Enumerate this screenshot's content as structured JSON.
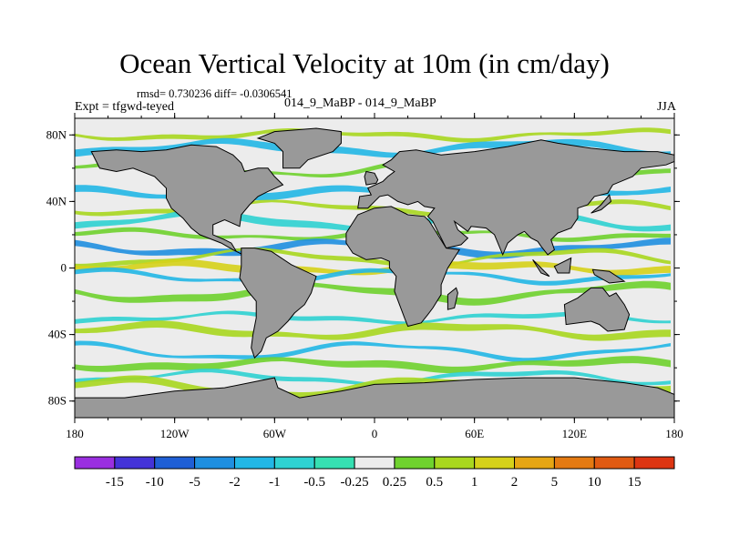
{
  "chart_data": {
    "type": "heatmap",
    "title": "Ocean Vertical Velocity at 10m (in cm/day)",
    "stats_line": "rmsd= 0.730236  diff= -0.0306541",
    "left_label": "Expt = tfgwd-teyed",
    "center_label": "014_9_MaBP - 014_9_MaBP",
    "right_label": "JJA",
    "xlim": [
      -180,
      180
    ],
    "ylim": [
      -90,
      90
    ],
    "x_ticks": [
      {
        "value": -180,
        "label": "180"
      },
      {
        "value": -120,
        "label": "120W"
      },
      {
        "value": -60,
        "label": "60W"
      },
      {
        "value": 0,
        "label": "0"
      },
      {
        "value": 60,
        "label": "60E"
      },
      {
        "value": 120,
        "label": "120E"
      },
      {
        "value": 180,
        "label": "180"
      }
    ],
    "y_ticks": [
      {
        "value": 80,
        "label": "80N"
      },
      {
        "value": 40,
        "label": "40N"
      },
      {
        "value": 0,
        "label": "0"
      },
      {
        "value": -40,
        "label": "40S"
      },
      {
        "value": -80,
        "label": "80S"
      }
    ],
    "colorbar": {
      "levels": [
        "-15",
        "-10",
        "-5",
        "-2",
        "-1",
        "-0.5",
        "-0.25",
        "0.25",
        "0.5",
        "1",
        "2",
        "5",
        "10",
        "15"
      ],
      "colors": [
        "#9a2fe0",
        "#4433d8",
        "#1f5fd6",
        "#1f8fe0",
        "#22b7e6",
        "#2fd2d2",
        "#36e0b2",
        "#ececec",
        "#6fd22e",
        "#a9d71f",
        "#d6d11a",
        "#e6a614",
        "#e47a12",
        "#e05a12",
        "#dd3512"
      ]
    },
    "land_color": "#999999",
    "ocean_background": "#ececec",
    "bands": [
      {
        "lat": 80,
        "value": 1
      },
      {
        "lat": 72,
        "value": -1
      },
      {
        "lat": 60,
        "value": 0.5
      },
      {
        "lat": 45,
        "value": -1
      },
      {
        "lat": 36,
        "value": 1
      },
      {
        "lat": 28,
        "value": -0.5
      },
      {
        "lat": 20,
        "value": 0.5
      },
      {
        "lat": 12,
        "value": -2
      },
      {
        "lat": 6,
        "value": 1
      },
      {
        "lat": 0,
        "value": 2
      },
      {
        "lat": -5,
        "value": -1
      },
      {
        "lat": -15,
        "value": 0.5
      },
      {
        "lat": -30,
        "value": -0.5
      },
      {
        "lat": -38,
        "value": 1
      },
      {
        "lat": -50,
        "value": -1
      },
      {
        "lat": -58,
        "value": 0.5
      },
      {
        "lat": -66,
        "value": -0.5
      },
      {
        "lat": -72,
        "value": 1
      }
    ],
    "land": [
      [
        [
          -170,
          70
        ],
        [
          -155,
          71
        ],
        [
          -140,
          70
        ],
        [
          -125,
          71
        ],
        [
          -110,
          74
        ],
        [
          -95,
          73
        ],
        [
          -85,
          68
        ],
        [
          -80,
          63
        ],
        [
          -78,
          58
        ],
        [
          -70,
          60
        ],
        [
          -64,
          60
        ],
        [
          -60,
          55
        ],
        [
          -55,
          50
        ],
        [
          -64,
          46
        ],
        [
          -70,
          43
        ],
        [
          -75,
          38
        ],
        [
          -80,
          32
        ],
        [
          -81,
          25
        ],
        [
          -90,
          29
        ],
        [
          -97,
          26
        ],
        [
          -97,
          20
        ],
        [
          -90,
          17
        ],
        [
          -86,
          15
        ],
        [
          -83,
          10
        ],
        [
          -79,
          8
        ],
        [
          -85,
          11
        ],
        [
          -92,
          15
        ],
        [
          -105,
          20
        ],
        [
          -110,
          24
        ],
        [
          -115,
          30
        ],
        [
          -122,
          36
        ],
        [
          -125,
          42
        ],
        [
          -125,
          48
        ],
        [
          -132,
          55
        ],
        [
          -145,
          60
        ],
        [
          -155,
          58
        ],
        [
          -165,
          60
        ],
        [
          -168,
          66
        ]
      ],
      [
        [
          -80,
          12
        ],
        [
          -72,
          12
        ],
        [
          -62,
          10
        ],
        [
          -50,
          2
        ],
        [
          -35,
          -5
        ],
        [
          -38,
          -15
        ],
        [
          -42,
          -22
        ],
        [
          -48,
          -27
        ],
        [
          -52,
          -32
        ],
        [
          -58,
          -38
        ],
        [
          -65,
          -42
        ],
        [
          -68,
          -50
        ],
        [
          -72,
          -54
        ],
        [
          -74,
          -48
        ],
        [
          -73,
          -40
        ],
        [
          -71,
          -30
        ],
        [
          -71,
          -20
        ],
        [
          -76,
          -14
        ],
        [
          -81,
          -6
        ],
        [
          -80,
          1
        ]
      ],
      [
        [
          -55,
          60
        ],
        [
          -45,
          60
        ],
        [
          -40,
          65
        ],
        [
          -25,
          70
        ],
        [
          -20,
          75
        ],
        [
          -20,
          82
        ],
        [
          -35,
          84
        ],
        [
          -60,
          82
        ],
        [
          -70,
          78
        ],
        [
          -60,
          75
        ],
        [
          -55,
          70
        ]
      ],
      [
        [
          -10,
          36
        ],
        [
          -9,
          43
        ],
        [
          -2,
          44
        ],
        [
          -4,
          48
        ],
        [
          5,
          52
        ],
        [
          8,
          55
        ],
        [
          12,
          58
        ],
        [
          5,
          62
        ],
        [
          10,
          65
        ],
        [
          15,
          70
        ],
        [
          25,
          71
        ],
        [
          40,
          68
        ],
        [
          60,
          70
        ],
        [
          80,
          73
        ],
        [
          100,
          77
        ],
        [
          110,
          75
        ],
        [
          130,
          72
        ],
        [
          150,
          70
        ],
        [
          170,
          70
        ],
        [
          180,
          68
        ],
        [
          180,
          64
        ],
        [
          175,
          62
        ],
        [
          160,
          60
        ],
        [
          155,
          55
        ],
        [
          143,
          50
        ],
        [
          140,
          45
        ],
        [
          132,
          43
        ],
        [
          128,
          38
        ],
        [
          122,
          36
        ],
        [
          122,
          30
        ],
        [
          118,
          24
        ],
        [
          110,
          21
        ],
        [
          106,
          17
        ],
        [
          108,
          11
        ],
        [
          104,
          8
        ],
        [
          100,
          13
        ],
        [
          98,
          16
        ],
        [
          94,
          18
        ],
        [
          90,
          22
        ],
        [
          86,
          20
        ],
        [
          80,
          15
        ],
        [
          77,
          8
        ],
        [
          72,
          20
        ],
        [
          67,
          24
        ],
        [
          58,
          25
        ],
        [
          56,
          22
        ],
        [
          48,
          28
        ],
        [
          50,
          23
        ],
        [
          56,
          18
        ],
        [
          52,
          14
        ],
        [
          43,
          12
        ],
        [
          35,
          28
        ],
        [
          32,
          31
        ],
        [
          36,
          36
        ],
        [
          30,
          37
        ],
        [
          26,
          40
        ],
        [
          20,
          38
        ],
        [
          14,
          40
        ],
        [
          8,
          44
        ],
        [
          3,
          43
        ],
        [
          -4,
          36
        ]
      ],
      [
        [
          -17,
          21
        ],
        [
          -10,
          32
        ],
        [
          0,
          36
        ],
        [
          10,
          37
        ],
        [
          20,
          32
        ],
        [
          30,
          31
        ],
        [
          33,
          28
        ],
        [
          43,
          12
        ],
        [
          51,
          11
        ],
        [
          44,
          0
        ],
        [
          40,
          -10
        ],
        [
          40,
          -16
        ],
        [
          35,
          -24
        ],
        [
          32,
          -28
        ],
        [
          28,
          -33
        ],
        [
          20,
          -35
        ],
        [
          18,
          -30
        ],
        [
          15,
          -22
        ],
        [
          12,
          -14
        ],
        [
          13,
          -5
        ],
        [
          9,
          0
        ],
        [
          9,
          4
        ],
        [
          4,
          6
        ],
        [
          -5,
          5
        ],
        [
          -13,
          9
        ],
        [
          -17,
          15
        ]
      ],
      [
        [
          44,
          -25
        ],
        [
          48,
          -24
        ],
        [
          50,
          -15
        ],
        [
          49,
          -12
        ],
        [
          44,
          -16
        ]
      ],
      [
        [
          -5,
          50
        ],
        [
          1,
          51
        ],
        [
          2,
          53
        ],
        [
          0,
          57
        ],
        [
          -5,
          58
        ],
        [
          -6,
          55
        ]
      ],
      [
        [
          114,
          -22
        ],
        [
          122,
          -18
        ],
        [
          130,
          -12
        ],
        [
          137,
          -12
        ],
        [
          141,
          -17
        ],
        [
          145,
          -15
        ],
        [
          150,
          -22
        ],
        [
          153,
          -28
        ],
        [
          150,
          -37
        ],
        [
          140,
          -38
        ],
        [
          135,
          -34
        ],
        [
          130,
          -32
        ],
        [
          115,
          -34
        ]
      ],
      [
        [
          95,
          5
        ],
        [
          105,
          -5
        ],
        [
          100,
          -3
        ]
      ],
      [
        [
          108,
          1
        ],
        [
          118,
          6
        ],
        [
          117,
          -3
        ],
        [
          110,
          -3
        ]
      ],
      [
        [
          131,
          -1
        ],
        [
          141,
          -2
        ],
        [
          150,
          -8
        ],
        [
          141,
          -9
        ],
        [
          132,
          -4
        ]
      ],
      [
        [
          130,
          33
        ],
        [
          136,
          35
        ],
        [
          142,
          40
        ],
        [
          141,
          44
        ],
        [
          136,
          38
        ]
      ],
      [
        [
          -180,
          -78
        ],
        [
          -150,
          -78
        ],
        [
          -120,
          -74
        ],
        [
          -90,
          -72
        ],
        [
          -60,
          -66
        ],
        [
          -58,
          -72
        ],
        [
          -45,
          -78
        ],
        [
          -20,
          -74
        ],
        [
          0,
          -70
        ],
        [
          30,
          -69
        ],
        [
          60,
          -67
        ],
        [
          90,
          -66
        ],
        [
          120,
          -66
        ],
        [
          150,
          -69
        ],
        [
          170,
          -72
        ],
        [
          180,
          -76
        ],
        [
          180,
          -90
        ],
        [
          -180,
          -90
        ]
      ]
    ]
  }
}
